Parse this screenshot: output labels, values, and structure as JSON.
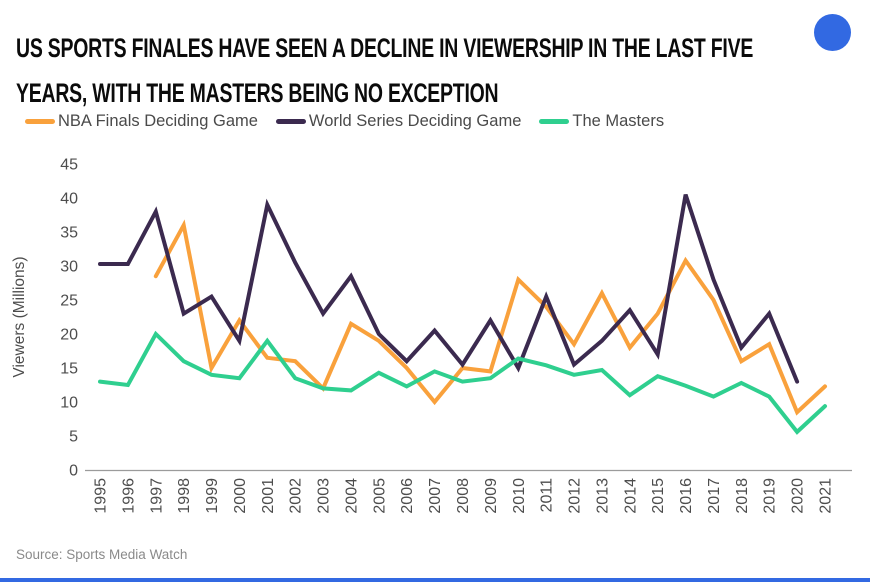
{
  "header": {
    "title_lines": [
      "US SPORTS FINALES HAVE SEEN A DECLINE IN VIEWERSHIP IN THE LAST FIVE",
      "YEARS, WITH THE MASTERS BEING NO EXCEPTION"
    ],
    "brand_dot_color": "#3269E2"
  },
  "chart_data": {
    "type": "line",
    "title": "US SPORTS FINALES HAVE SEEN A DECLINE IN VIEWERSHIP IN THE LAST FIVE YEARS, WITH THE MASTERS BEING NO EXCEPTION",
    "x": [
      1995,
      1996,
      1997,
      1998,
      1999,
      2000,
      2001,
      2002,
      2003,
      2004,
      2005,
      2006,
      2007,
      2008,
      2009,
      2010,
      2011,
      2012,
      2013,
      2014,
      2015,
      2016,
      2017,
      2018,
      2019,
      2020,
      2021
    ],
    "series": [
      {
        "name": "NBA Finals Deciding Game",
        "color": "#F9A13C",
        "values": [
          null,
          null,
          28.5,
          36,
          15,
          22,
          16.5,
          16,
          12,
          21.5,
          19,
          15,
          10,
          15,
          14.5,
          28,
          24,
          18.5,
          26,
          18,
          23,
          30.8,
          25,
          16,
          18.5,
          8.5,
          12.3
        ]
      },
      {
        "name": "World Series Deciding Game",
        "color": "#3B2A4F",
        "values": [
          30.3,
          30.3,
          38,
          23,
          25.5,
          19,
          39,
          30.5,
          23,
          28.5,
          20,
          16,
          20.5,
          15.5,
          22,
          15,
          25.5,
          15.5,
          19,
          23.5,
          17,
          40.5,
          28,
          18,
          23,
          13,
          null
        ]
      },
      {
        "name": "The Masters",
        "color": "#2FCF8F",
        "values": [
          13,
          12.5,
          20,
          16,
          14,
          13.5,
          19,
          13.5,
          12,
          11.7,
          14.3,
          12.3,
          14.5,
          13,
          13.5,
          16.4,
          15.4,
          14,
          14.7,
          11,
          13.8,
          12.4,
          10.8,
          12.8,
          10.8,
          5.6,
          9.4
        ]
      }
    ],
    "xlabel": "",
    "ylabel": "Viewers (Millions)",
    "ylim": [
      0,
      45
    ],
    "ytick_step": 5,
    "grid": false,
    "legend_position": "top",
    "axis_text_color": "#4d4d4d"
  },
  "footer": {
    "source": "Source: Sports Media Watch"
  }
}
